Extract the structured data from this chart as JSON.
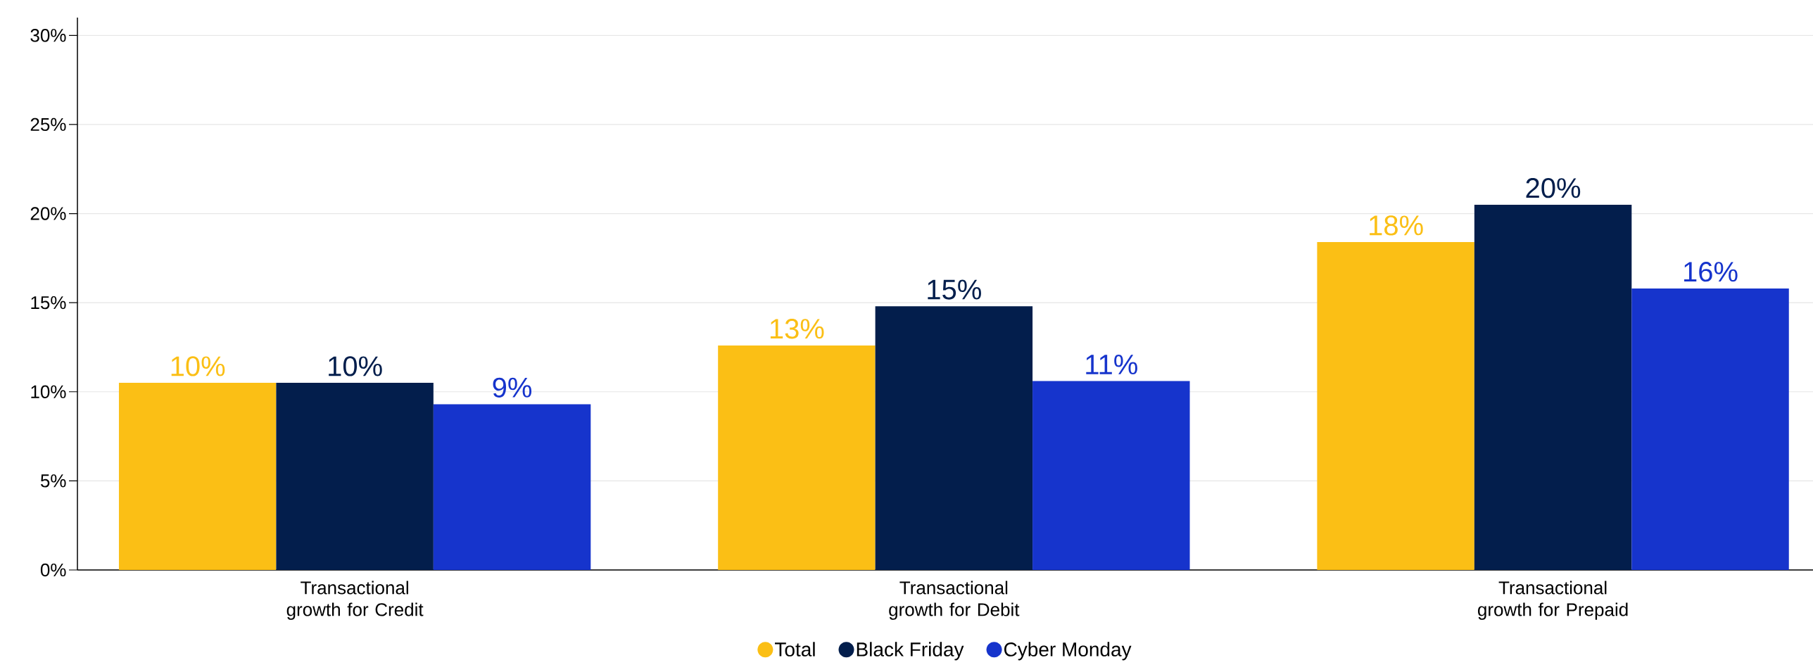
{
  "chart_data": {
    "type": "bar",
    "categories": [
      "Transactional growth for Credit",
      "Transactional growth for Debit",
      "Transactional growth for Prepaid"
    ],
    "series": [
      {
        "name": "Total",
        "color": "#fbbf15",
        "values": [
          10.5,
          12.6,
          18.4
        ],
        "value_labels": [
          "10%",
          "13%",
          "18%"
        ]
      },
      {
        "name": "Black Friday",
        "color": "#031e4c",
        "values": [
          10.5,
          14.8,
          20.5
        ],
        "value_labels": [
          "10%",
          "15%",
          "20%"
        ]
      },
      {
        "name": "Cyber Monday",
        "color": "#1634cc",
        "values": [
          9.3,
          10.6,
          15.8
        ],
        "value_labels": [
          "9%",
          "11%",
          "16%"
        ]
      }
    ],
    "ylim": [
      0,
      31
    ],
    "yticks": [
      {
        "value": 0,
        "label": "0%"
      },
      {
        "value": 5,
        "label": "5%"
      },
      {
        "value": 10,
        "label": "10%"
      },
      {
        "value": 15,
        "label": "15%"
      },
      {
        "value": 20,
        "label": "20%"
      },
      {
        "value": 25,
        "label": "25%"
      },
      {
        "value": 30,
        "label": "30%"
      }
    ],
    "grid": "y",
    "legend": "bottom"
  }
}
